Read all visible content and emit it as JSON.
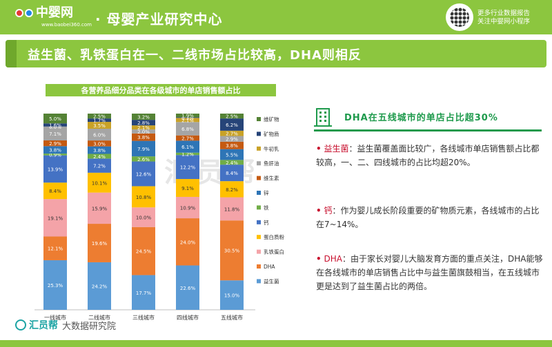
{
  "header": {
    "logo_text": "中婴网",
    "logo_url": "www.baobei360.com",
    "title": "· 母婴产业研究中心",
    "qr_line1": "更多行业数据报告",
    "qr_line2": "关注中婴网小程序"
  },
  "page_title": "益生菌、乳铁蛋白在一、二线市场占比较高，DHA则相反",
  "chart_data": {
    "type": "bar",
    "stacked": true,
    "title": "各营养品细分品类在各级城市的单店销售额占比",
    "categories": [
      "一线城市",
      "二线城市",
      "三线城市",
      "四线城市",
      "五线城市"
    ],
    "series": [
      {
        "name": "益生菌",
        "color": "#5b9bd5",
        "values": [
          25.3,
          24.2,
          17.7,
          22.6,
          15.0
        ]
      },
      {
        "name": "DHA",
        "color": "#ed7d31",
        "values": [
          12.1,
          19.6,
          24.5,
          24.0,
          30.5
        ]
      },
      {
        "name": "乳铁蛋白",
        "color": "#f4a3a8",
        "values": [
          19.1,
          15.9,
          10.0,
          10.9,
          11.8
        ]
      },
      {
        "name": "蛋白质粉",
        "color": "#ffc000",
        "values": [
          8.4,
          10.1,
          10.8,
          9.1,
          8.2
        ]
      },
      {
        "name": "钙",
        "color": "#4472c4",
        "values": [
          13.9,
          7.2,
          12.6,
          12.2,
          8.4
        ]
      },
      {
        "name": "铁",
        "color": "#70ad47",
        "values": [
          0.9,
          2.4,
          2.6,
          1.2,
          2.4
        ]
      },
      {
        "name": "锌",
        "color": "#2e75b6",
        "values": [
          3.8,
          3.8,
          7.9,
          6.1,
          5.5
        ]
      },
      {
        "name": "维生素",
        "color": "#c55a11",
        "values": [
          2.9,
          3.0,
          3.8,
          2.7,
          3.8
        ]
      },
      {
        "name": "鱼肝油",
        "color": "#a5a5a5",
        "values": [
          7.1,
          6.0,
          2.0,
          6.8,
          2.9
        ]
      },
      {
        "name": "牛初乳",
        "color": "#c9a227",
        "values": [
          0.0,
          3.5,
          2.1,
          2.1,
          2.7
        ]
      },
      {
        "name": "矿物质",
        "color": "#264478",
        "values": [
          1.6,
          1.7,
          2.8,
          0.3,
          6.2
        ]
      },
      {
        "name": "维矿物",
        "color": "#548235",
        "values": [
          5.0,
          2.5,
          3.2,
          1.9,
          2.5
        ]
      }
    ],
    "ylim": [
      0,
      100
    ],
    "legend": "right"
  },
  "right_panel": {
    "heading": "DHA在五线城市的单店占比超30%",
    "points": [
      {
        "bullet": "•",
        "term": "益生菌",
        "text": "：益生菌覆盖面比较广，各线城市单店销售额占比都较高，一、二、四线城市的占比均超20%。"
      },
      {
        "bullet": "•",
        "term": "钙",
        "text": "：作为婴儿成长阶段重要的矿物质元素，各线城市的占比在7~14%。"
      },
      {
        "bullet": "•",
        "term": "DHA",
        "text": "：由于家长对婴儿大脑发育方面的重点关注，DHA能够在各线城市的单店销售占比中与益生菌旗鼓相当，在五线城市更是达到了益生菌占比的两倍。"
      }
    ]
  },
  "footer": {
    "brand": "汇员帮",
    "sub": "大数据研究院"
  },
  "watermark": "汇员帮"
}
